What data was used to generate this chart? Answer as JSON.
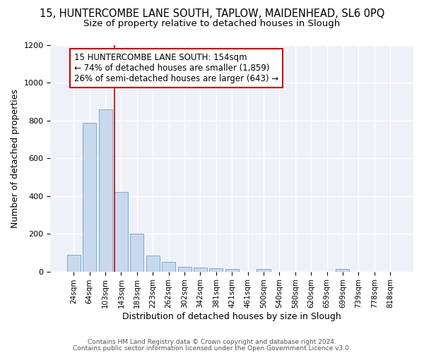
{
  "title1": "15, HUNTERCOMBE LANE SOUTH, TAPLOW, MAIDENHEAD, SL6 0PQ",
  "title2": "Size of property relative to detached houses in Slough",
  "xlabel": "Distribution of detached houses by size in Slough",
  "ylabel": "Number of detached properties",
  "categories": [
    "24sqm",
    "64sqm",
    "103sqm",
    "143sqm",
    "183sqm",
    "223sqm",
    "262sqm",
    "302sqm",
    "342sqm",
    "381sqm",
    "421sqm",
    "461sqm",
    "500sqm",
    "540sqm",
    "580sqm",
    "620sqm",
    "659sqm",
    "699sqm",
    "739sqm",
    "778sqm",
    "818sqm"
  ],
  "values": [
    90,
    790,
    860,
    420,
    200,
    85,
    50,
    25,
    20,
    18,
    15,
    0,
    12,
    0,
    0,
    0,
    0,
    12,
    0,
    0,
    0
  ],
  "bar_color": "#c9d9ed",
  "bar_edge_color": "#7aa8d0",
  "ylim": [
    0,
    1200
  ],
  "yticks": [
    0,
    200,
    400,
    600,
    800,
    1000,
    1200
  ],
  "red_line_x": 3.0,
  "annotation_text": "15 HUNTERCOMBE LANE SOUTH: 154sqm\n← 74% of detached houses are smaller (1,859)\n26% of semi-detached houses are larger (643) →",
  "annotation_box_color": "#ffffff",
  "annotation_box_edge": "#cc0000",
  "footer1": "Contains HM Land Registry data © Crown copyright and database right 2024.",
  "footer2": "Contains public sector information licensed under the Open Government Licence v3.0.",
  "background_color": "#ffffff",
  "plot_bg_color": "#eef2f8",
  "title1_fontsize": 10.5,
  "title2_fontsize": 9.5,
  "tick_fontsize": 7.5,
  "ylabel_fontsize": 9,
  "xlabel_fontsize": 9,
  "annotation_fontsize": 8.5
}
